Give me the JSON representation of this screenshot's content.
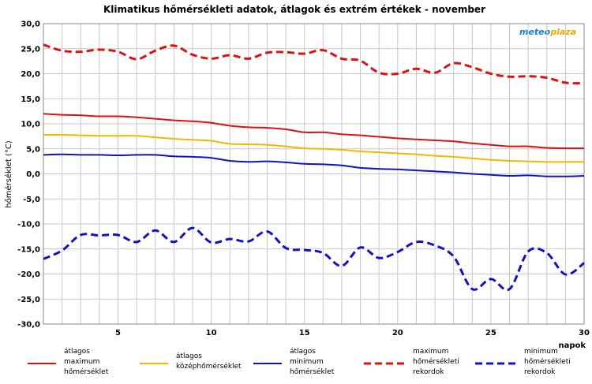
{
  "chart_data": {
    "type": "line",
    "title": "Klimatikus hőmérsékleti adatok, átlagok és extrém értékek - november",
    "ylabel": "hőmérséklet (°C)",
    "xlabel": "napok",
    "logo": "meteoplaza",
    "xlim": [
      1,
      30
    ],
    "ylim": [
      -30,
      30
    ],
    "x_ticks": [
      5,
      10,
      15,
      20,
      25,
      30
    ],
    "y_ticks": [
      "30,0",
      "25,0",
      "20,0",
      "15,0",
      "10,0",
      "5,0",
      "0,0",
      "-5,0",
      "-10,0",
      "-15,0",
      "-20,0",
      "-25,0",
      "-30,0"
    ],
    "grid": true,
    "legend_position": "bottom",
    "x": [
      1,
      2,
      3,
      4,
      5,
      6,
      7,
      8,
      9,
      10,
      11,
      12,
      13,
      14,
      15,
      16,
      17,
      18,
      19,
      20,
      21,
      22,
      23,
      24,
      25,
      26,
      27,
      28,
      29,
      30
    ],
    "series": [
      {
        "name": "átlagos maximum hőmérséklet",
        "legend_lines": [
          "átlagos",
          "maximum",
          "hőmérséklet"
        ],
        "color": "#dd1111",
        "dashed": false,
        "values": [
          12.0,
          11.8,
          11.7,
          11.5,
          11.5,
          11.3,
          11.0,
          10.7,
          10.5,
          10.2,
          9.6,
          9.3,
          9.2,
          8.9,
          8.3,
          8.3,
          7.9,
          7.7,
          7.4,
          7.1,
          6.9,
          6.7,
          6.5,
          6.1,
          5.8,
          5.5,
          5.5,
          5.2,
          5.1,
          5.1
        ]
      },
      {
        "name": "átlagos középhőmérséklet",
        "legend_lines": [
          "átlagos",
          "középhőmérséklet"
        ],
        "color": "#f2b800",
        "dashed": false,
        "values": [
          7.8,
          7.8,
          7.7,
          7.6,
          7.6,
          7.6,
          7.3,
          7.0,
          6.8,
          6.6,
          6.0,
          5.9,
          5.8,
          5.5,
          5.1,
          5.0,
          4.8,
          4.5,
          4.3,
          4.1,
          3.9,
          3.6,
          3.4,
          3.1,
          2.8,
          2.6,
          2.5,
          2.4,
          2.4,
          2.4
        ]
      },
      {
        "name": "átlagos minimum hőmérséklet",
        "legend_lines": [
          "átlagos",
          "minimum",
          "hőmérséklet"
        ],
        "color": "#1111cc",
        "dashed": false,
        "values": [
          3.8,
          3.9,
          3.8,
          3.8,
          3.7,
          3.8,
          3.8,
          3.5,
          3.4,
          3.2,
          2.6,
          2.4,
          2.5,
          2.3,
          2.0,
          1.9,
          1.7,
          1.2,
          1.0,
          0.9,
          0.7,
          0.5,
          0.3,
          0.0,
          -0.2,
          -0.4,
          -0.3,
          -0.5,
          -0.5,
          -0.4
        ]
      },
      {
        "name": "maximum hőmérsékleti rekordok",
        "legend_lines": [
          "maximum",
          "hőmérsékleti",
          "rekordok"
        ],
        "color": "#dd1111",
        "dashed": true,
        "values": [
          25.8,
          24.6,
          24.4,
          24.8,
          24.4,
          22.9,
          24.6,
          25.6,
          23.8,
          23.0,
          23.7,
          23.0,
          24.2,
          24.3,
          24.0,
          24.7,
          23.0,
          22.6,
          20.2,
          20.0,
          21.0,
          20.2,
          22.1,
          21.3,
          20.0,
          19.4,
          19.5,
          19.2,
          18.2,
          18.1
        ]
      },
      {
        "name": "minimum hőmérsékleti rekordok",
        "legend_lines": [
          "minimum",
          "hőmérsékleti",
          "rekordok"
        ],
        "color": "#1111cc",
        "dashed": true,
        "values": [
          -17.0,
          -15.3,
          -12.2,
          -12.3,
          -12.2,
          -13.6,
          -11.3,
          -13.6,
          -10.8,
          -13.7,
          -13.0,
          -13.5,
          -11.5,
          -14.8,
          -15.2,
          -15.8,
          -18.4,
          -14.7,
          -16.8,
          -15.6,
          -13.6,
          -14.3,
          -16.5,
          -23.0,
          -21.0,
          -23.0,
          -15.5,
          -15.8,
          -20.1,
          -17.8
        ]
      }
    ]
  }
}
